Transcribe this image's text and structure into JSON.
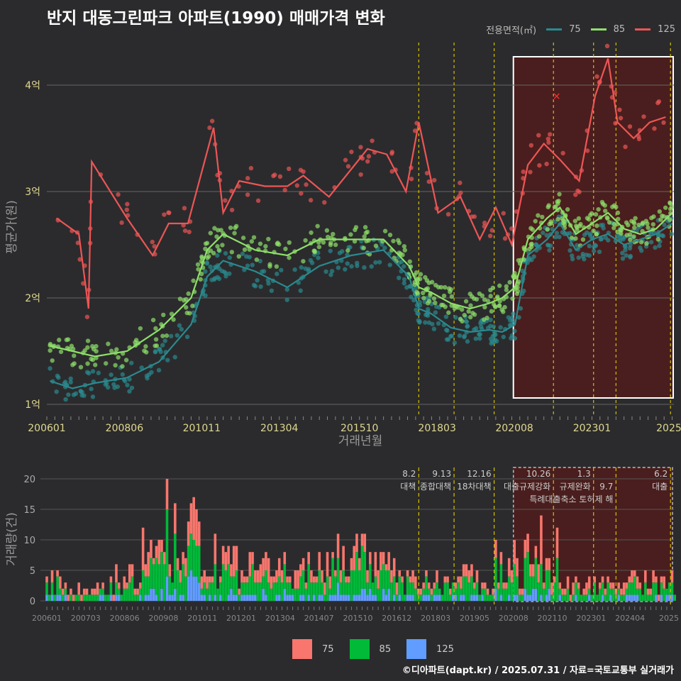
{
  "title": "반지 대동그린파크 아파트(1990) 매매가격 변화",
  "credit": "©디아파트(dapt.kr) / 2025.07.31 / 자료=국토교통부 실거래가",
  "legend_top": {
    "label": "전용면적(㎡)",
    "items": [
      "75",
      "85",
      "125"
    ]
  },
  "legend_bottom": {
    "items": [
      "75",
      "85",
      "125"
    ]
  },
  "colors": {
    "s75": "#2a8a8e",
    "s85": "#8ee06a",
    "s125": "#ee5555",
    "bar75": "#f8766d",
    "bar85": "#00ba38",
    "bar125": "#619cff",
    "vline": "#d4c000",
    "highlight": "#4a1e1e"
  },
  "chart_data": [
    {
      "type": "line",
      "title": "반지 대동그린파크 아파트(1990) 매매가격 변화",
      "xlabel": "거래년월",
      "ylabel": "평균가(원)",
      "x_ticks": [
        "200601",
        "200806",
        "201011",
        "201304",
        "201510",
        "201803",
        "202008",
        "202301",
        "2025"
      ],
      "y_ticks": [
        "1억",
        "2억",
        "3억",
        "4억"
      ],
      "ylim": [
        0.9,
        4.4
      ],
      "series": [
        {
          "name": "75",
          "x": [
            2006.1,
            2006.8,
            2007.5,
            2008.5,
            2009.5,
            2010.5,
            2011.0,
            2011.5,
            2012.5,
            2013.5,
            2014.5,
            2015.5,
            2016.5,
            2017.3,
            2017.6,
            2018.0,
            2018.6,
            2019.2,
            2019.8,
            2020.2,
            2020.6,
            2021.0,
            2021.6,
            2022.0,
            2022.5,
            2023.0,
            2023.5,
            2024.0,
            2024.5,
            2025.0,
            2025.5
          ],
          "y": [
            1.22,
            1.15,
            1.2,
            1.25,
            1.4,
            1.75,
            2.2,
            2.35,
            2.25,
            2.1,
            2.3,
            2.4,
            2.45,
            2.2,
            1.9,
            1.85,
            1.72,
            1.68,
            1.7,
            1.68,
            1.75,
            2.4,
            2.55,
            2.7,
            2.45,
            2.55,
            2.6,
            2.5,
            2.55,
            2.6,
            2.7
          ]
        },
        {
          "name": "85",
          "x": [
            2006.1,
            2006.8,
            2007.5,
            2008.5,
            2009.5,
            2010.5,
            2011.0,
            2011.5,
            2012.5,
            2013.5,
            2014.5,
            2015.5,
            2016.5,
            2017.3,
            2017.6,
            2018.0,
            2018.6,
            2019.2,
            2019.8,
            2020.2,
            2020.6,
            2021.0,
            2021.6,
            2022.0,
            2022.5,
            2023.0,
            2023.5,
            2024.0,
            2024.5,
            2025.0,
            2025.5
          ],
          "y": [
            1.55,
            1.5,
            1.45,
            1.5,
            1.7,
            2.0,
            2.45,
            2.6,
            2.45,
            2.4,
            2.55,
            2.55,
            2.55,
            2.3,
            2.1,
            2.05,
            1.95,
            1.9,
            1.95,
            2.0,
            2.1,
            2.55,
            2.75,
            2.85,
            2.6,
            2.7,
            2.8,
            2.65,
            2.6,
            2.65,
            2.8
          ]
        },
        {
          "name": "125",
          "x": [
            2006.3,
            2007.0,
            2007.3,
            2007.4,
            2008.5,
            2009.3,
            2009.8,
            2010.4,
            2011.2,
            2011.5,
            2012.0,
            2012.8,
            2013.5,
            2014.0,
            2014.8,
            2015.6,
            2016.0,
            2016.6,
            2017.2,
            2017.6,
            2018.2,
            2018.9,
            2019.5,
            2020.0,
            2020.5,
            2021.0,
            2021.5,
            2022.0,
            2022.6,
            2023.1,
            2023.5,
            2023.8,
            2024.3,
            2024.8,
            2025.3
          ],
          "y": [
            2.75,
            2.6,
            1.9,
            3.28,
            2.75,
            2.4,
            2.7,
            2.7,
            3.6,
            2.8,
            3.1,
            3.05,
            3.05,
            3.15,
            2.95,
            3.25,
            3.4,
            3.35,
            3.0,
            3.65,
            2.8,
            2.95,
            2.55,
            2.85,
            2.5,
            3.25,
            3.45,
            3.3,
            3.1,
            3.9,
            4.25,
            3.65,
            3.5,
            3.65,
            3.7
          ]
        }
      ],
      "annotation_marker": {
        "x": 2021.9,
        "y": 3.9,
        "symbol": "×"
      }
    },
    {
      "type": "bar",
      "stacked": true,
      "ylabel": "거래량(건)",
      "x_ticks": [
        "200601",
        "200703",
        "200806",
        "200908",
        "201011",
        "201201",
        "201304",
        "201407",
        "201510",
        "201612",
        "201803",
        "201905",
        "202008",
        "202110",
        "202301",
        "202404",
        "2025"
      ],
      "y_ticks": [
        "0",
        "5",
        "10",
        "15",
        "20"
      ],
      "ylim": [
        0,
        22
      ],
      "series_names": [
        "75",
        "85",
        "125"
      ],
      "monthly_totals_by_year": [
        {
          "year": 2006,
          "avg": 3
        },
        {
          "year": 2007,
          "avg": 2
        },
        {
          "year": 2008,
          "avg": 4
        },
        {
          "year": 2009,
          "avg": 7
        },
        {
          "year": 2010,
          "avg": 10
        },
        {
          "year": 2011,
          "avg": 7
        },
        {
          "year": 2012,
          "avg": 5
        },
        {
          "year": 2013,
          "avg": 5
        },
        {
          "year": 2014,
          "avg": 6
        },
        {
          "year": 2015,
          "avg": 8
        },
        {
          "year": 2016,
          "avg": 5
        },
        {
          "year": 2017,
          "avg": 3
        },
        {
          "year": 2018,
          "avg": 3
        },
        {
          "year": 2019,
          "avg": 4
        },
        {
          "year": 2020,
          "avg": 6
        },
        {
          "year": 2021,
          "avg": 8
        },
        {
          "year": 2022,
          "avg": 3
        },
        {
          "year": 2023,
          "avg": 3
        },
        {
          "year": 2024,
          "avg": 3
        },
        {
          "year": 2025,
          "avg": 3
        }
      ],
      "peak": {
        "x": 2009.75,
        "value": 20
      },
      "policy_events": [
        {
          "x": 2017.6,
          "date": "8.2",
          "label": "대책"
        },
        {
          "x": 2018.7,
          "date": "9.13",
          "label": "종합대책"
        },
        {
          "x": 2019.95,
          "date": "12.16",
          "label": "18차대책"
        },
        {
          "x": 2021.8,
          "date": "10.26",
          "label": "대출규제강화"
        },
        {
          "x": 2023.05,
          "date": "1.3",
          "label": "규제완화"
        },
        {
          "x": 2023.75,
          "date": "9.7",
          "label": "특례대출축소 토허제 해"
        },
        {
          "x": 2025.45,
          "date": "6.2",
          "label": "대출"
        }
      ]
    }
  ]
}
